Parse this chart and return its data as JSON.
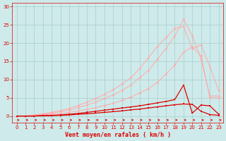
{
  "x": [
    0,
    1,
    2,
    3,
    4,
    5,
    6,
    7,
    8,
    9,
    10,
    11,
    12,
    13,
    14,
    15,
    16,
    17,
    18,
    19,
    20,
    21,
    22,
    23
  ],
  "line_light1": [
    0,
    0,
    0.1,
    0.3,
    0.5,
    0.7,
    1.0,
    1.4,
    1.8,
    2.3,
    2.9,
    3.5,
    4.3,
    5.2,
    6.3,
    7.5,
    9.2,
    11.5,
    14.0,
    17.5,
    19.0,
    16.5,
    5.0,
    5.0
  ],
  "line_light2": [
    0,
    0,
    0.2,
    0.5,
    0.8,
    1.2,
    1.7,
    2.3,
    3.0,
    3.8,
    4.8,
    5.8,
    7.0,
    8.5,
    10.5,
    12.5,
    15.5,
    18.5,
    22.0,
    26.5,
    22.0,
    15.5,
    5.5,
    5.5
  ],
  "line_light3": [
    0,
    0,
    0.3,
    0.6,
    1.0,
    1.5,
    2.1,
    2.9,
    3.8,
    4.8,
    6.0,
    7.2,
    8.8,
    10.5,
    13.0,
    16.0,
    19.0,
    21.5,
    24.0,
    24.5,
    18.5,
    19.5,
    13.5,
    7.0
  ],
  "line_dark1": [
    0,
    0,
    0,
    0.1,
    0.2,
    0.3,
    0.5,
    0.7,
    1.0,
    1.3,
    1.6,
    1.9,
    2.2,
    2.5,
    2.8,
    3.2,
    3.6,
    4.0,
    4.5,
    8.5,
    0.8,
    3.0,
    2.8,
    0.5
  ],
  "line_dark2": [
    0,
    0,
    0,
    0.1,
    0.1,
    0.2,
    0.3,
    0.5,
    0.6,
    0.8,
    1.0,
    1.2,
    1.4,
    1.7,
    1.9,
    2.2,
    2.5,
    2.8,
    3.1,
    3.3,
    3.2,
    1.3,
    0.4,
    0.2
  ],
  "color_light": "#ffaaaa",
  "color_dark": "#dd0000",
  "bg_color": "#ceeaea",
  "grid_color": "#aacccc",
  "xlabel": "Vent moyen/en rafales ( km/h )",
  "ylim": [
    -1.8,
    31
  ],
  "xlim": [
    -0.5,
    23.5
  ],
  "yticks": [
    0,
    5,
    10,
    15,
    20,
    25,
    30
  ],
  "xticks": [
    0,
    1,
    2,
    3,
    4,
    5,
    6,
    7,
    8,
    9,
    10,
    11,
    12,
    13,
    14,
    15,
    16,
    17,
    18,
    19,
    20,
    21,
    22,
    23
  ]
}
